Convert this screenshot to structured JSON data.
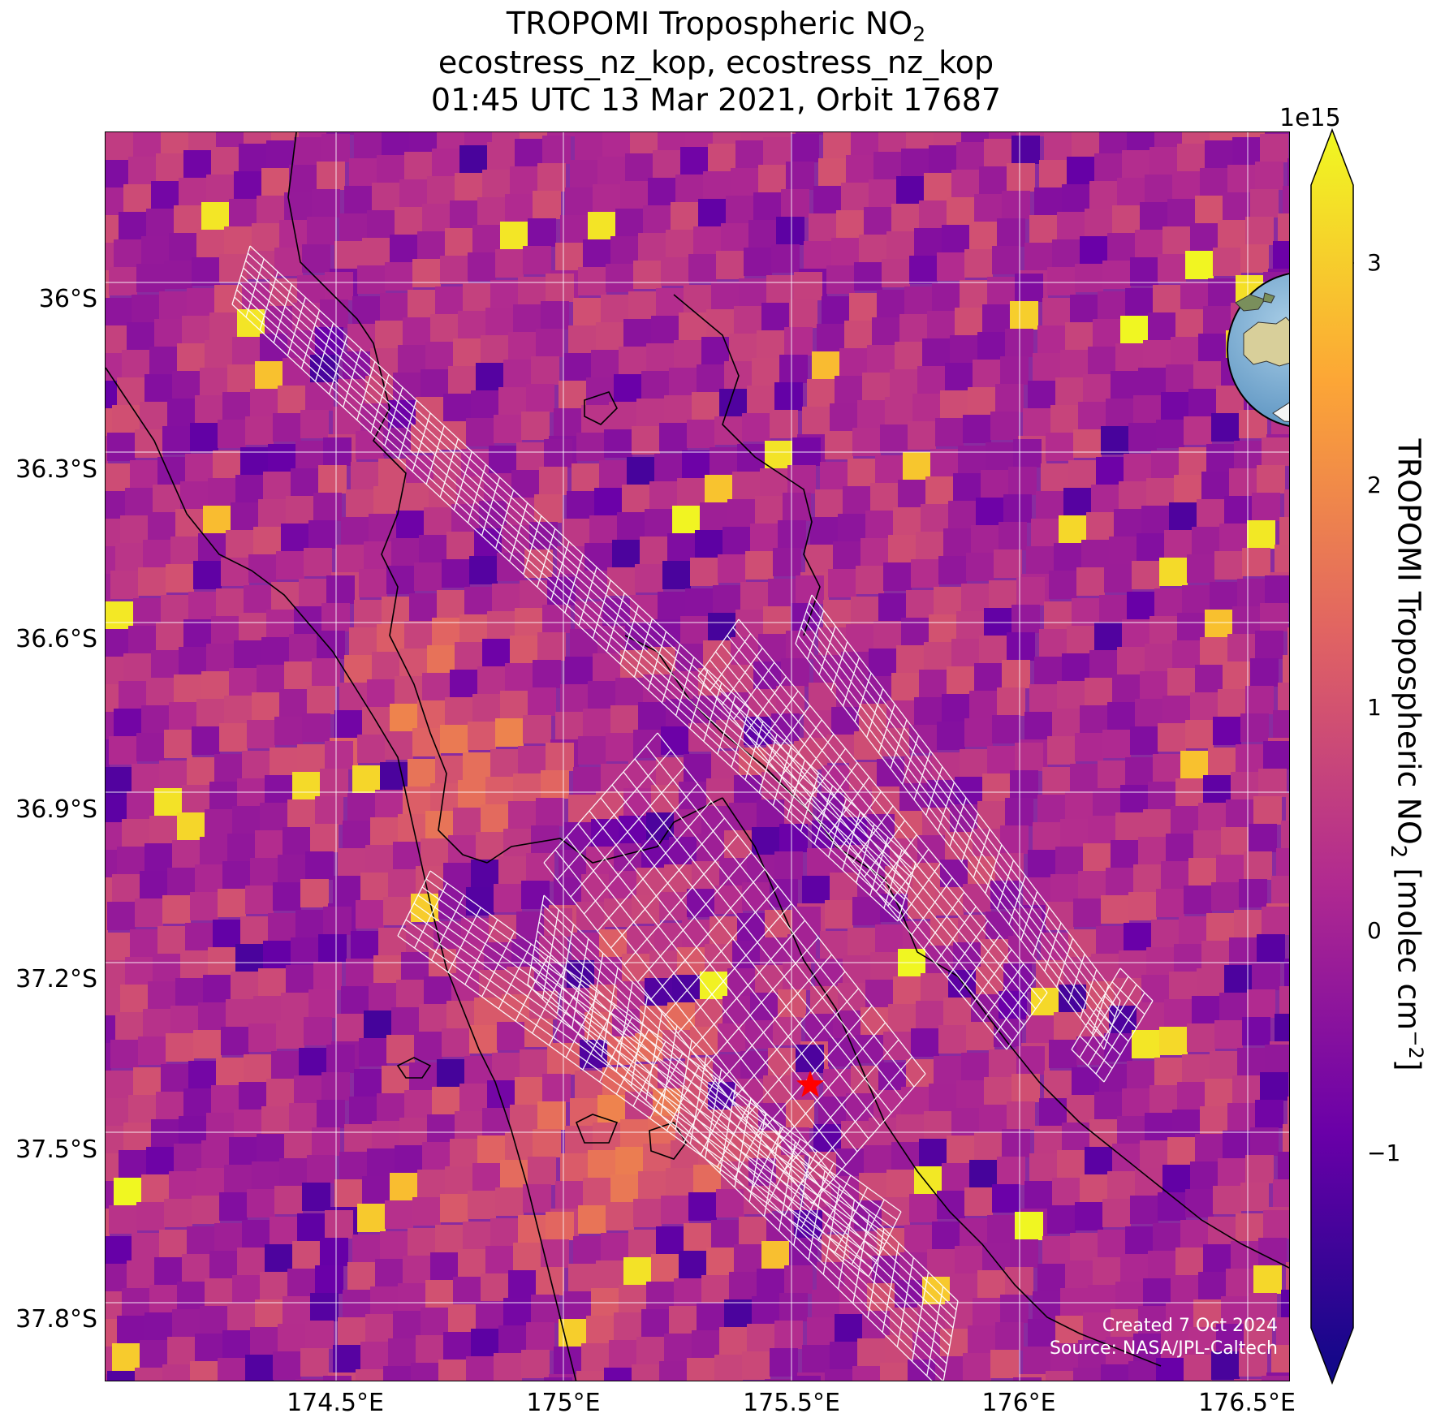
{
  "title": {
    "line1_main": "TROPOMI Tropospheric NO",
    "line1_sub": "2",
    "line2": "ecostress_nz_kop, ecostress_nz_kop",
    "line3": "01:45 UTC 13 Mar 2021, Orbit 17687"
  },
  "map": {
    "lat_labels": [
      "36°S",
      "36.3°S",
      "36.6°S",
      "36.9°S",
      "37.2°S",
      "37.5°S",
      "37.8°S"
    ],
    "lon_labels": [
      "174.5°E",
      "175°E",
      "175.5°E",
      "176°E",
      "176.5°E"
    ],
    "credit_created": "Created 7 Oct 2024",
    "credit_source": "Source: NASA/JPL-Caltech",
    "star_color": "#ff0000"
  },
  "colorbar": {
    "exponent": "1e15",
    "ticks": [
      "3",
      "2",
      "1",
      "0",
      "−1"
    ],
    "label_main": "TROPOMI Tropospheric NO",
    "label_sub": "2",
    "label_unit": " [molec cm",
    "label_sup": "−2",
    "label_end": "]",
    "colormap": "plasma",
    "colors": [
      "#0d0887",
      "#6a00a8",
      "#b12a90",
      "#e16462",
      "#fca636",
      "#f0f921"
    ]
  }
}
